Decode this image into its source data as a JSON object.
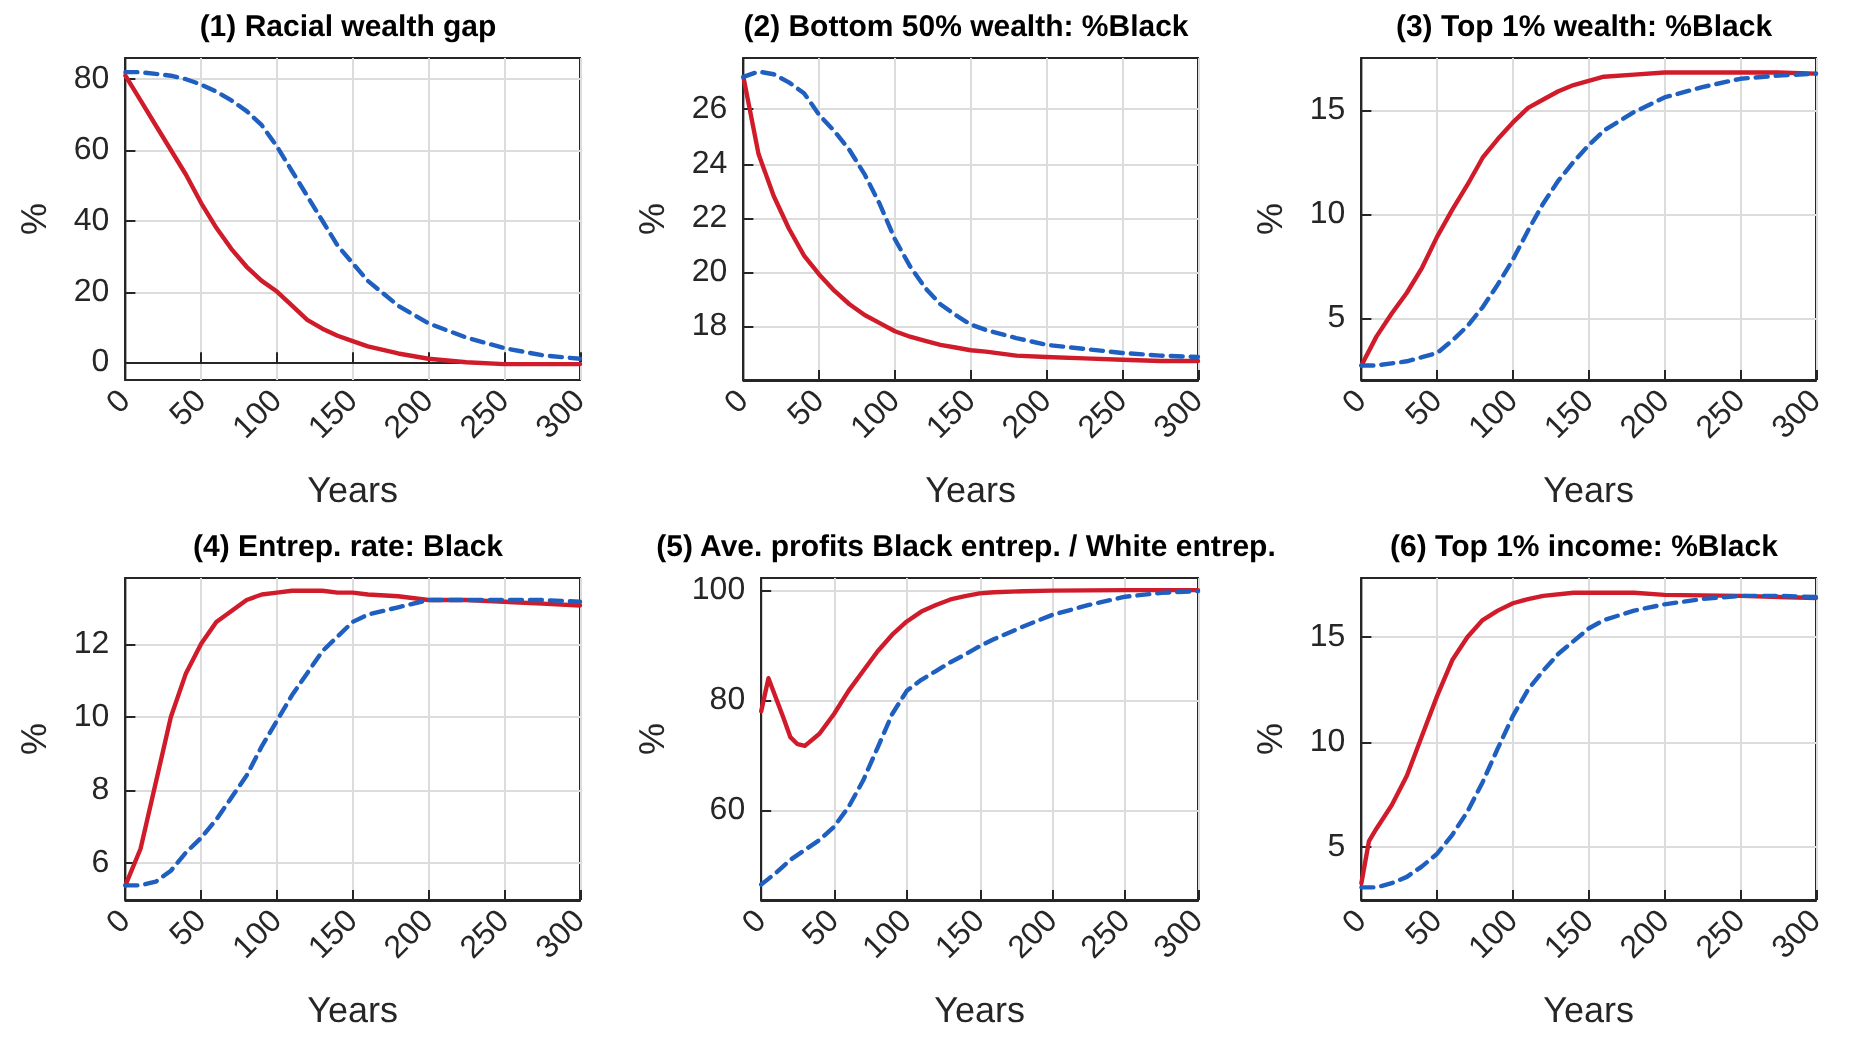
{
  "chart_data": [
    {
      "type": "line",
      "title": "(1) Racial wealth gap",
      "xlabel": "Years",
      "ylabel": "%",
      "x": [
        0,
        10,
        20,
        30,
        40,
        50,
        60,
        70,
        80,
        90,
        100,
        110,
        120,
        130,
        140,
        150,
        160,
        180,
        200,
        225,
        250,
        275,
        300
      ],
      "xlim": [
        0,
        300
      ],
      "xticks": [
        0,
        50,
        100,
        150,
        200,
        250,
        300
      ],
      "ylim": [
        -5,
        86
      ],
      "yticks": [
        0,
        20,
        40,
        60,
        80
      ],
      "grid": true,
      "marker": "none",
      "series": [
        {
          "color": "#d01c2a",
          "line_style": "solid",
          "values": [
            81,
            74,
            67,
            60,
            53,
            45,
            38,
            32,
            27,
            23,
            20,
            16,
            12,
            9.5,
            7.5,
            6,
            4.5,
            2.5,
            1,
            0,
            -0.5,
            -0.5,
            -0.5
          ]
        },
        {
          "color": "#1f5fbf",
          "line_style": "dashed",
          "values": [
            82,
            82,
            81.5,
            81,
            80,
            78.5,
            76.5,
            74,
            71,
            67,
            61,
            54,
            47,
            40,
            33,
            28,
            23,
            16,
            11,
            7,
            4,
            2,
            1
          ]
        }
      ]
    },
    {
      "type": "line",
      "title": "(2) Bottom 50% wealth: %Black",
      "xlabel": "Years",
      "ylabel": "%",
      "x": [
        0,
        10,
        20,
        30,
        40,
        50,
        60,
        70,
        80,
        90,
        100,
        110,
        120,
        130,
        140,
        150,
        160,
        180,
        200,
        225,
        250,
        275,
        300
      ],
      "xlim": [
        0,
        300
      ],
      "xticks": [
        0,
        50,
        100,
        150,
        200,
        250,
        300
      ],
      "ylim": [
        16,
        27.9
      ],
      "yticks": [
        18,
        20,
        22,
        24,
        26
      ],
      "grid": true,
      "marker": "none",
      "series": [
        {
          "color": "#d01c2a",
          "line_style": "solid",
          "values": [
            27.2,
            24.35,
            22.8,
            21.6,
            20.6,
            19.9,
            19.3,
            18.8,
            18.4,
            18.1,
            17.8,
            17.6,
            17.45,
            17.3,
            17.2,
            17.1,
            17.05,
            16.9,
            16.85,
            16.8,
            16.75,
            16.7,
            16.7
          ]
        },
        {
          "color": "#1f5fbf",
          "line_style": "dashed",
          "values": [
            27.2,
            27.4,
            27.3,
            27.0,
            26.6,
            25.8,
            25.2,
            24.5,
            23.6,
            22.5,
            21.2,
            20.2,
            19.4,
            18.8,
            18.4,
            18.05,
            17.85,
            17.55,
            17.3,
            17.15,
            17.0,
            16.9,
            16.85
          ]
        }
      ]
    },
    {
      "type": "line",
      "title": "(3) Top 1% wealth: %Black",
      "xlabel": "Years",
      "ylabel": "%",
      "x": [
        0,
        10,
        20,
        30,
        40,
        50,
        60,
        70,
        80,
        90,
        100,
        110,
        120,
        130,
        140,
        150,
        160,
        180,
        200,
        225,
        250,
        275,
        300
      ],
      "xlim": [
        0,
        300
      ],
      "xticks": [
        0,
        50,
        100,
        150,
        200,
        250,
        300
      ],
      "ylim": [
        2,
        17.5
      ],
      "yticks": [
        5,
        10,
        15
      ],
      "grid": true,
      "marker": "none",
      "series": [
        {
          "color": "#d01c2a",
          "line_style": "solid",
          "values": [
            2.7,
            4.1,
            5.2,
            6.2,
            7.4,
            8.9,
            10.2,
            11.4,
            12.7,
            13.6,
            14.4,
            15.1,
            15.5,
            15.9,
            16.2,
            16.4,
            16.6,
            16.7,
            16.8,
            16.8,
            16.8,
            16.8,
            16.75
          ]
        },
        {
          "color": "#1f5fbf",
          "line_style": "dashed",
          "values": [
            2.7,
            2.7,
            2.8,
            2.9,
            3.1,
            3.3,
            3.9,
            4.6,
            5.5,
            6.6,
            7.8,
            9.2,
            10.5,
            11.6,
            12.5,
            13.3,
            14.0,
            14.9,
            15.6,
            16.1,
            16.5,
            16.65,
            16.75
          ]
        }
      ]
    },
    {
      "type": "line",
      "title": "(4) Entrep. rate: Black",
      "xlabel": "Years",
      "ylabel": "%",
      "x": [
        0,
        10,
        20,
        30,
        40,
        50,
        60,
        70,
        80,
        90,
        100,
        110,
        120,
        130,
        140,
        150,
        160,
        180,
        200,
        225,
        250,
        275,
        300
      ],
      "xlim": [
        0,
        300
      ],
      "xticks": [
        0,
        50,
        100,
        150,
        200,
        250,
        300
      ],
      "ylim": [
        5,
        13.8
      ],
      "yticks": [
        6,
        8,
        10,
        12
      ],
      "grid": true,
      "marker": "none",
      "series": [
        {
          "color": "#d01c2a",
          "line_style": "solid",
          "values": [
            5.4,
            6.4,
            8.2,
            10.0,
            11.2,
            12.0,
            12.6,
            12.9,
            13.2,
            13.35,
            13.4,
            13.45,
            13.45,
            13.45,
            13.4,
            13.4,
            13.35,
            13.3,
            13.2,
            13.2,
            13.15,
            13.1,
            13.05
          ]
        },
        {
          "color": "#1f5fbf",
          "line_style": "dashed",
          "values": [
            5.4,
            5.4,
            5.5,
            5.8,
            6.3,
            6.7,
            7.2,
            7.8,
            8.4,
            9.2,
            9.9,
            10.6,
            11.2,
            11.8,
            12.2,
            12.6,
            12.8,
            13.0,
            13.2,
            13.2,
            13.2,
            13.2,
            13.15
          ]
        }
      ]
    },
    {
      "type": "line",
      "title": "(5) Ave. profits Black entrep. / White entrep.",
      "xlabel": "Years",
      "ylabel": "%",
      "x": [
        0,
        10,
        20,
        30,
        40,
        50,
        60,
        70,
        80,
        90,
        100,
        110,
        120,
        130,
        140,
        150,
        160,
        180,
        200,
        225,
        250,
        275,
        300
      ],
      "xlim": [
        0,
        300
      ],
      "xticks": [
        0,
        50,
        100,
        150,
        200,
        250,
        300
      ],
      "ylim": [
        43.7,
        102.2
      ],
      "yticks": [
        60,
        80,
        100
      ],
      "grid": true,
      "marker": "none",
      "series": [
        {
          "color": "#d01c2a",
          "line_style": "solid",
          "x": [
            0,
            5,
            10,
            15,
            20,
            25,
            30,
            40,
            50,
            60,
            70,
            80,
            90,
            100,
            110,
            120,
            130,
            140,
            150,
            160,
            180,
            200,
            250,
            300
          ],
          "values": [
            78,
            84,
            80.5,
            77,
            73.3,
            72,
            71.7,
            73.9,
            77.5,
            81.7,
            85.3,
            88.9,
            91.9,
            94.3,
            96.1,
            97.3,
            98.3,
            98.9,
            99.4,
            99.6,
            99.8,
            99.9,
            100,
            100
          ]
        },
        {
          "color": "#1f5fbf",
          "line_style": "dashed",
          "values": [
            46.5,
            48.6,
            51,
            52.8,
            54.6,
            57,
            60.6,
            65.4,
            71.4,
            77.5,
            81.7,
            83.7,
            85.3,
            86.9,
            88.3,
            89.8,
            91.1,
            93.4,
            95.5,
            97.3,
            98.8,
            99.5,
            99.8
          ]
        }
      ]
    },
    {
      "type": "line",
      "title": "(6) Top 1% income: %Black",
      "xlabel": "Years",
      "ylabel": "%",
      "x": [
        0,
        10,
        20,
        30,
        40,
        50,
        60,
        70,
        80,
        90,
        100,
        110,
        120,
        130,
        140,
        150,
        160,
        180,
        200,
        225,
        250,
        275,
        300
      ],
      "xlim": [
        0,
        300
      ],
      "xticks": [
        0,
        50,
        100,
        150,
        200,
        250,
        300
      ],
      "ylim": [
        2.5,
        17.8
      ],
      "yticks": [
        5,
        10,
        15
      ],
      "grid": true,
      "marker": "none",
      "series": [
        {
          "color": "#d01c2a",
          "line_style": "solid",
          "x": [
            0,
            5,
            10,
            20,
            30,
            40,
            50,
            60,
            70,
            80,
            90,
            100,
            110,
            120,
            140,
            160,
            180,
            200,
            250,
            300
          ],
          "values": [
            3.3,
            5.3,
            5.9,
            7.0,
            8.4,
            10.3,
            12.2,
            13.9,
            15.0,
            15.8,
            16.25,
            16.6,
            16.8,
            16.95,
            17.1,
            17.1,
            17.1,
            17.0,
            16.95,
            16.85
          ]
        },
        {
          "color": "#1f5fbf",
          "line_style": "dashed",
          "values": [
            3.1,
            3.1,
            3.3,
            3.6,
            4.1,
            4.7,
            5.6,
            6.7,
            8.1,
            9.7,
            11.25,
            12.5,
            13.4,
            14.2,
            14.8,
            15.4,
            15.8,
            16.25,
            16.55,
            16.8,
            16.95,
            16.95,
            16.9
          ]
        }
      ]
    }
  ]
}
